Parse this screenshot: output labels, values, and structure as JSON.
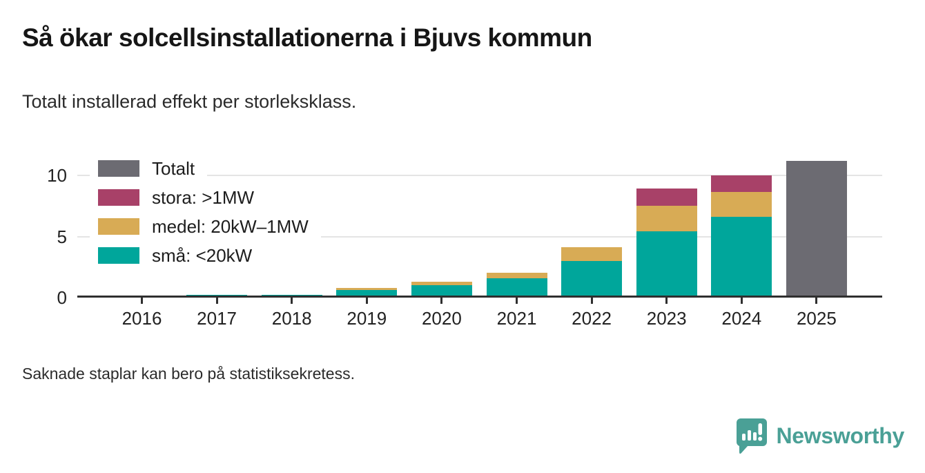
{
  "header": {
    "title": "Så ökar solcellsinstallationerna i Bjuvs kommun",
    "subtitle": "Totalt installerad effekt per storleksklass."
  },
  "chart_data": {
    "type": "bar",
    "stacked": true,
    "title": "Så ökar solcellsinstallationerna i Bjuvs kommun",
    "subtitle": "Totalt installerad effekt per storleksklass.",
    "categories": [
      "2016",
      "2017",
      "2018",
      "2019",
      "2020",
      "2021",
      "2022",
      "2023",
      "2024",
      "2025"
    ],
    "series": [
      {
        "name": "små: <20kW",
        "color": "#00a69b",
        "values": [
          0.17,
          0.22,
          0.25,
          0.6,
          1.0,
          1.6,
          3.0,
          5.4,
          6.6,
          null
        ]
      },
      {
        "name": "medel: 20kW–1MW",
        "color": "#d8ab55",
        "values": [
          null,
          null,
          null,
          0.2,
          0.3,
          0.45,
          1.1,
          2.1,
          2.05,
          null
        ]
      },
      {
        "name": "stora: >1MW",
        "color": "#a84168",
        "values": [
          null,
          null,
          null,
          null,
          null,
          null,
          null,
          1.4,
          1.35,
          null
        ]
      },
      {
        "name": "Totalt",
        "color": "#6c6b72",
        "values": [
          null,
          null,
          null,
          null,
          null,
          null,
          null,
          null,
          null,
          11.2
        ]
      }
    ],
    "legend": [
      {
        "label": "Totalt",
        "color": "#6c6b72"
      },
      {
        "label": "stora: >1MW",
        "color": "#a84168"
      },
      {
        "label": "medel: 20kW–1MW",
        "color": "#d8ab55"
      },
      {
        "label": "små: <20kW",
        "color": "#00a69b"
      }
    ],
    "xlabel": "",
    "ylabel": "",
    "yticks": [
      0,
      5,
      10
    ],
    "ylim": [
      0,
      11.6
    ],
    "grid": "horizontal",
    "legend_position": "top-left-inside"
  },
  "footer": {
    "note": "Saknade staplar kan bero på statistiksekretess.",
    "brand": "Newsworthy"
  }
}
